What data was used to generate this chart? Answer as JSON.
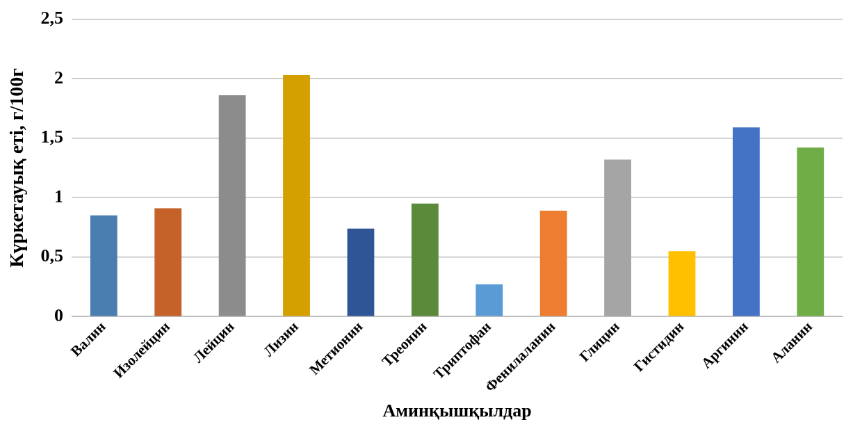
{
  "chart_data": {
    "type": "bar",
    "xlabel": "Аминқышқылдар",
    "ylabel": "Күркетауық еті, г/100г",
    "categories": [
      "Валин",
      "Изолейцин",
      "Лейцин",
      "Лизин",
      "Метионин",
      "Треонин",
      "Триптофан",
      "Фенилаланин",
      "Глицин",
      "Гистидин",
      "Аргинин",
      "Аланин"
    ],
    "values": [
      0.85,
      0.91,
      1.86,
      2.03,
      0.74,
      0.95,
      0.27,
      0.89,
      1.32,
      0.55,
      1.59,
      1.42
    ],
    "colors": [
      "#4a7eb0",
      "#c5622a",
      "#8c8c8c",
      "#d4a000",
      "#2f5597",
      "#5a8a3a",
      "#5b9bd5",
      "#ed7d31",
      "#a5a5a5",
      "#ffc000",
      "#4472c4",
      "#70ad47"
    ],
    "ylim": [
      0,
      2.5
    ],
    "yticks": [
      {
        "value": 0,
        "label": "0"
      },
      {
        "value": 0.5,
        "label": "0,5"
      },
      {
        "value": 1,
        "label": "1"
      },
      {
        "value": 1.5,
        "label": "1,5"
      },
      {
        "value": 2,
        "label": "2"
      },
      {
        "value": 2.5,
        "label": "2,5"
      }
    ],
    "grid": "y",
    "legend": false
  }
}
